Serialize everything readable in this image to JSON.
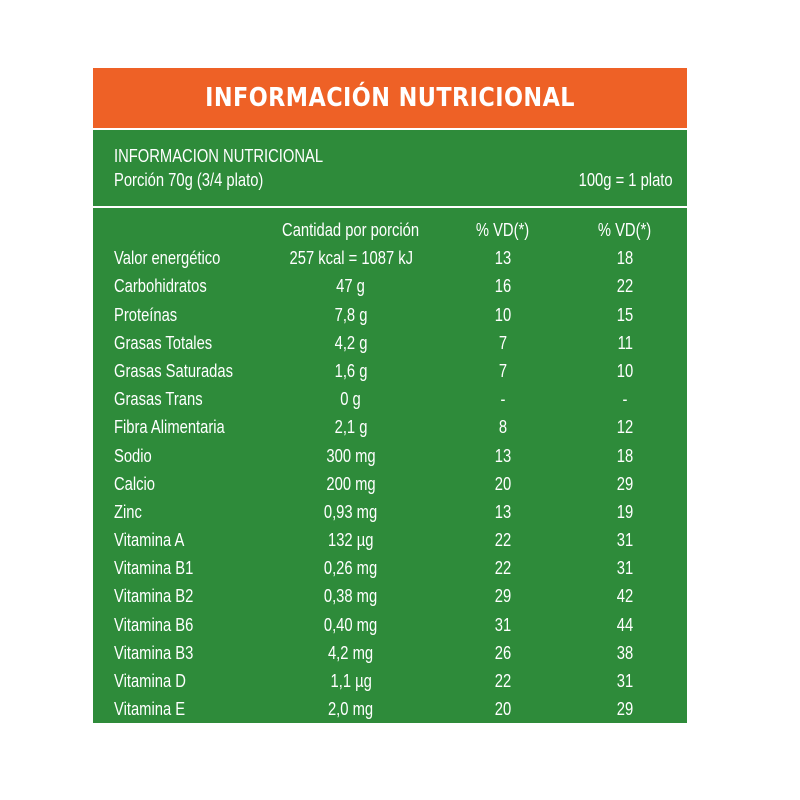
{
  "title": "INFORMACIÓN NUTRICIONAL",
  "header": {
    "line1": "INFORMACION NUTRICIONAL",
    "portion": "Porción 70g (3/4 plato)",
    "equivalence": "100g = 1 plato"
  },
  "columns": [
    "",
    "Cantidad por porción",
    "% VD(*)",
    "% VD(*)"
  ],
  "rows": [
    {
      "name": "Valor energético",
      "qty": "257 kcal = 1087 kJ",
      "vd1": "13",
      "vd2": "18"
    },
    {
      "name": "Carbohidratos",
      "qty": "47 g",
      "vd1": "16",
      "vd2": "22"
    },
    {
      "name": "Proteínas",
      "qty": "7,8 g",
      "vd1": "10",
      "vd2": "15"
    },
    {
      "name": "Grasas Totales",
      "qty": "4,2 g",
      "vd1": "7",
      "vd2": "11"
    },
    {
      "name": "Grasas Saturadas",
      "qty": "1,6 g",
      "vd1": "7",
      "vd2": "10"
    },
    {
      "name": "Grasas Trans",
      "qty": "0 g",
      "vd1": "-",
      "vd2": "-"
    },
    {
      "name": "Fibra Alimentaria",
      "qty": "2,1 g",
      "vd1": "8",
      "vd2": "12"
    },
    {
      "name": "Sodio",
      "qty": "300 mg",
      "vd1": "13",
      "vd2": "18"
    },
    {
      "name": "Calcio",
      "qty": "200 mg",
      "vd1": "20",
      "vd2": "29"
    },
    {
      "name": "Zinc",
      "qty": "0,93 mg",
      "vd1": "13",
      "vd2": "19"
    },
    {
      "name": "Vitamina A",
      "qty": "132 µg",
      "vd1": "22",
      "vd2": "31"
    },
    {
      "name": "Vitamina B1",
      "qty": "0,26 mg",
      "vd1": "22",
      "vd2": "31"
    },
    {
      "name": "Vitamina B2",
      "qty": "0,38 mg",
      "vd1": "29",
      "vd2": "42"
    },
    {
      "name": "Vitamina B6",
      "qty": "0,40 mg",
      "vd1": "31",
      "vd2": "44"
    },
    {
      "name": "Vitamina B3",
      "qty": "4,2 mg",
      "vd1": "26",
      "vd2": "38"
    },
    {
      "name": "Vitamina D",
      "qty": "1,1 µg",
      "vd1": "22",
      "vd2": "31"
    },
    {
      "name": "Vitamina E",
      "qty": "2,0 mg",
      "vd1": "20",
      "vd2": "29"
    }
  ],
  "colors": {
    "title_bar": "#ee6126",
    "panel": "#2e8b3a",
    "text": "#ffffff"
  }
}
